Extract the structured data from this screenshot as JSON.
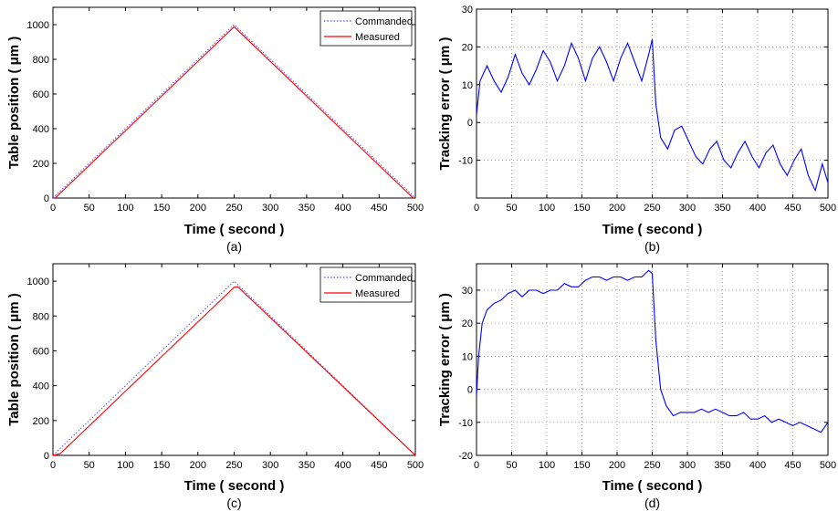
{
  "chart_data": [
    {
      "id": "a",
      "type": "line",
      "caption": "(a)",
      "xlabel": "Time ( second )",
      "ylabel": "Table position ( μm )",
      "xlim": [
        0,
        500
      ],
      "ylim": [
        0,
        1100
      ],
      "xticks": [
        "0",
        "50",
        "100",
        "150",
        "200",
        "250",
        "300",
        "350",
        "400",
        "450",
        "500"
      ],
      "yticks": [
        "0",
        "200",
        "400",
        "600",
        "800",
        "1000"
      ],
      "grid": false,
      "legend": "top-right",
      "legend_entries": [
        "Commanded",
        "Measured"
      ],
      "colors": {
        "commanded": "#4a4aff",
        "measured": "#ff0000"
      },
      "series": [
        {
          "name": "Commanded",
          "style": "dotted",
          "color": "#4a4aff",
          "x": [
            0,
            250,
            500
          ],
          "y": [
            0,
            1000,
            0
          ]
        },
        {
          "name": "Measured",
          "style": "solid",
          "color": "#ff0000",
          "x": [
            0,
            250,
            500
          ],
          "y": [
            -12,
            988,
            -12
          ]
        }
      ]
    },
    {
      "id": "b",
      "type": "line",
      "caption": "(b)",
      "xlabel": "Time ( second )",
      "ylabel": "Tracking error ( μm )",
      "xlim": [
        0,
        500
      ],
      "ylim": [
        -20,
        30
      ],
      "xticks": [
        "0",
        "50",
        "100",
        "150",
        "200",
        "250",
        "300",
        "350",
        "400",
        "450",
        "500"
      ],
      "yticks": [
        "-10",
        "0",
        "10",
        "20",
        "30"
      ],
      "grid": true,
      "colors": {
        "line": "#0000ff"
      },
      "series": [
        {
          "color": "#0000ff",
          "x": [
            0,
            5,
            15,
            25,
            35,
            45,
            55,
            65,
            75,
            85,
            95,
            105,
            115,
            125,
            135,
            145,
            155,
            165,
            175,
            185,
            195,
            205,
            215,
            225,
            235,
            245,
            250,
            255,
            262,
            272,
            282,
            292,
            302,
            312,
            322,
            332,
            342,
            352,
            362,
            372,
            382,
            392,
            402,
            412,
            422,
            432,
            442,
            452,
            462,
            472,
            482,
            492,
            500
          ],
          "y": [
            2,
            11,
            15,
            11,
            8,
            12,
            18,
            13,
            10,
            14,
            19,
            16,
            11,
            15,
            21,
            17,
            11,
            17,
            20,
            16,
            11,
            17,
            21,
            16,
            11,
            18,
            22,
            5,
            -4,
            -7,
            -2,
            -1,
            -5,
            -9,
            -11,
            -7,
            -5,
            -10,
            -12,
            -8,
            -5,
            -9,
            -12,
            -8,
            -6,
            -11,
            -14,
            -10,
            -7,
            -14,
            -18,
            -11,
            -16
          ]
        }
      ]
    },
    {
      "id": "c",
      "type": "line",
      "caption": "(c)",
      "xlabel": "Time ( second )",
      "ylabel": "Table position ( μm )",
      "xlim": [
        0,
        500
      ],
      "ylim": [
        0,
        1100
      ],
      "xticks": [
        "0",
        "50",
        "100",
        "150",
        "200",
        "250",
        "300",
        "350",
        "400",
        "450",
        "500"
      ],
      "yticks": [
        "0",
        "200",
        "400",
        "600",
        "800",
        "1000"
      ],
      "grid": false,
      "legend": "top-right",
      "legend_entries": [
        "Commanded",
        "Measured"
      ],
      "colors": {
        "commanded": "#4a4aff",
        "measured": "#ff0000"
      },
      "series": [
        {
          "name": "Commanded",
          "style": "dotted",
          "color": "#4a4aff",
          "x": [
            0,
            250,
            500
          ],
          "y": [
            0,
            1000,
            0
          ]
        },
        {
          "name": "Measured",
          "style": "solid",
          "color": "#ff0000",
          "x": [
            0,
            10,
            250,
            255,
            500
          ],
          "y": [
            0,
            10,
            965,
            968,
            0
          ]
        }
      ]
    },
    {
      "id": "d",
      "type": "line",
      "caption": "(d)",
      "xlabel": "Time ( second )",
      "ylabel": "Tracking error ( μm )",
      "xlim": [
        0,
        500
      ],
      "ylim": [
        -20,
        38
      ],
      "xticks": [
        "0",
        "50",
        "100",
        "150",
        "200",
        "250",
        "300",
        "350",
        "400",
        "450",
        "500"
      ],
      "yticks": [
        "-20",
        "-10",
        "0",
        "10",
        "20",
        "30"
      ],
      "grid": true,
      "colors": {
        "line": "#0000ff"
      },
      "series": [
        {
          "color": "#0000ff",
          "x": [
            0,
            3,
            8,
            15,
            25,
            35,
            45,
            55,
            65,
            75,
            85,
            95,
            105,
            115,
            125,
            135,
            145,
            155,
            165,
            175,
            185,
            195,
            205,
            215,
            225,
            235,
            245,
            250,
            255,
            262,
            270,
            280,
            290,
            300,
            310,
            320,
            330,
            340,
            350,
            360,
            370,
            380,
            390,
            400,
            410,
            420,
            430,
            440,
            450,
            460,
            470,
            480,
            490,
            500
          ],
          "y": [
            -2,
            10,
            20,
            24,
            26,
            27,
            29,
            30,
            28,
            30,
            30,
            29,
            30,
            30,
            32,
            31,
            31,
            33,
            34,
            34,
            33,
            34,
            34,
            33,
            34,
            34,
            36,
            35,
            15,
            0,
            -5,
            -8,
            -7,
            -7,
            -7,
            -6,
            -7,
            -6,
            -7,
            -8,
            -8,
            -7,
            -9,
            -9,
            -8,
            -10,
            -9,
            -10,
            -11,
            -10,
            -11,
            -12,
            -13,
            -10
          ]
        }
      ]
    }
  ]
}
